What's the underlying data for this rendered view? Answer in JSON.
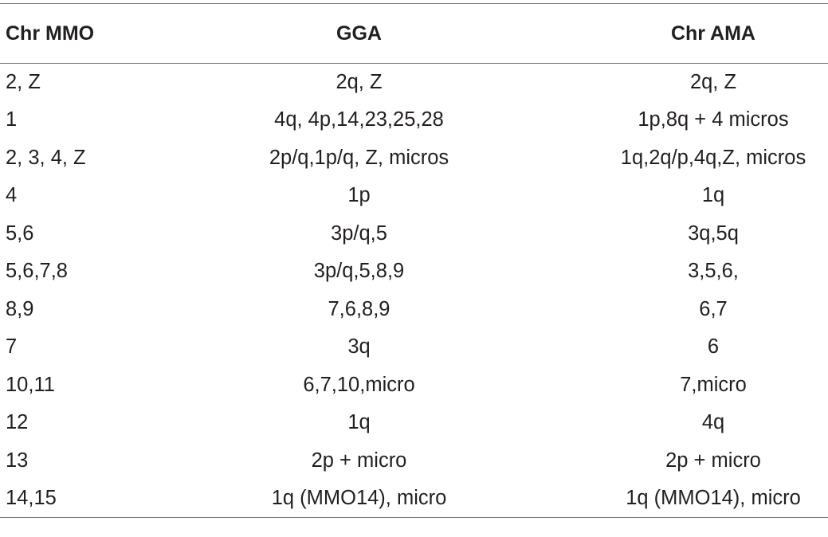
{
  "table": {
    "headers": [
      "Chr MMO",
      "GGA",
      "Chr AMA"
    ],
    "rows": [
      [
        "2, Z",
        "2q, Z",
        "2q, Z"
      ],
      [
        "1",
        "4q, 4p,14,23,25,28",
        "1p,8q + 4 micros"
      ],
      [
        "2, 3, 4, Z",
        "2p/q,1p/q, Z, micros",
        "1q,2q/p,4q,Z, micros"
      ],
      [
        "4",
        "1p",
        "1q"
      ],
      [
        "5,6",
        "3p/q,5",
        "3q,5q"
      ],
      [
        "5,6,7,8",
        "3p/q,5,8,9",
        "3,5,6,"
      ],
      [
        "8,9",
        "7,6,8,9",
        "6,7"
      ],
      [
        "7",
        "3q",
        "6"
      ],
      [
        "10,11",
        "6,7,10,micro",
        "7,micro"
      ],
      [
        "12",
        "1q",
        "4q"
      ],
      [
        "13",
        "2p + micro",
        "2p + micro"
      ],
      [
        "14,15",
        "1q (MMO14), micro",
        "1q (MMO14), micro"
      ]
    ]
  }
}
